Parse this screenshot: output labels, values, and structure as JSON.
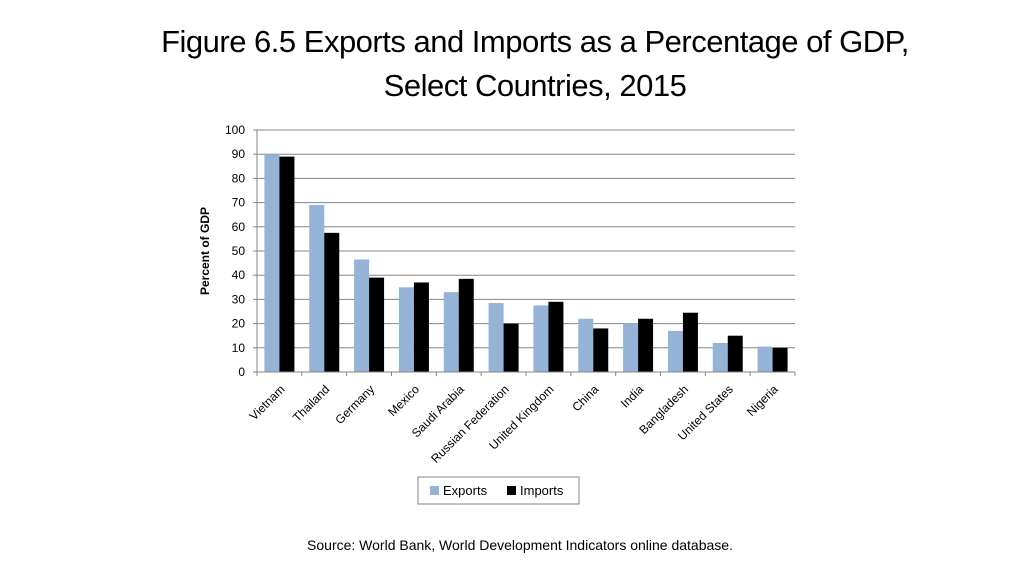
{
  "title": {
    "line1": "Figure 6.5 Exports and Imports as a Percentage of GDP,",
    "line2": "Select Countries, 2015"
  },
  "source": "Source: World Bank, World Development Indicators online database.",
  "chart_data": {
    "type": "bar",
    "title": "",
    "xlabel": "",
    "ylabel": "Percent of GDP",
    "ylim": [
      0,
      100
    ],
    "yticks": [
      0,
      10,
      20,
      30,
      40,
      50,
      60,
      70,
      80,
      90,
      100
    ],
    "grid": true,
    "legend_position": "bottom",
    "categories": [
      "Vietnam",
      "Thailand",
      "Germany",
      "Mexico",
      "Saudi Arabia",
      "Russian Federation",
      "United Kingdom",
      "China",
      "India",
      "Bangladesh",
      "United States",
      "Nigeria"
    ],
    "series": [
      {
        "name": "Exports",
        "color": "#95b3d7",
        "values": [
          90,
          69,
          46.5,
          35,
          33,
          28.5,
          27.5,
          22,
          20,
          17,
          12,
          10.5
        ]
      },
      {
        "name": "Imports",
        "color": "#000000",
        "values": [
          89,
          57.5,
          39,
          37,
          38.5,
          20,
          29,
          18,
          22,
          24.5,
          15,
          10
        ]
      }
    ]
  }
}
